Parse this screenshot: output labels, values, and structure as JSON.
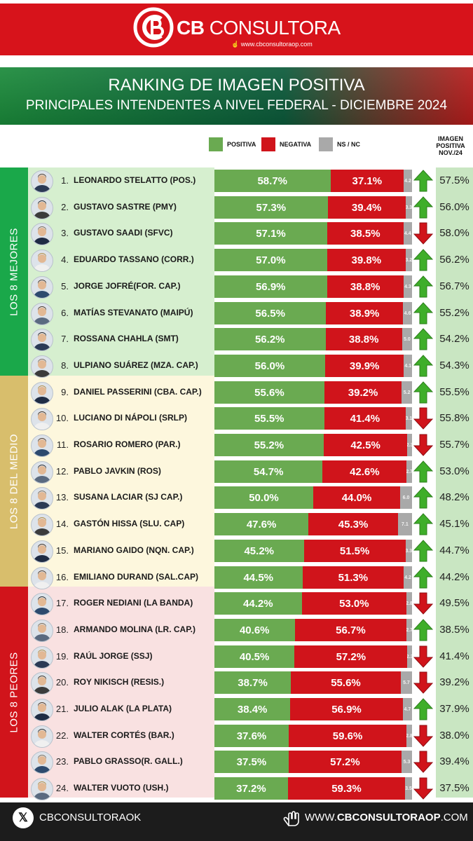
{
  "header": {
    "brand_bold": "CB",
    "brand_rest": "CONSULTORA",
    "url": "www.cbconsultoraop.com"
  },
  "title_line1": "RANKING DE IMAGEN POSITIVA",
  "title_line2": "PRINCIPALES INTENDENTES A NIVEL FEDERAL - DICIEMBRE 2024",
  "legend": {
    "positive": "POSITIVA",
    "negative": "NEGATIVA",
    "nsnc": "NS / NC",
    "prev_header": [
      "IMAGEN",
      "POSITIVA",
      "NOV./24"
    ]
  },
  "groups": [
    {
      "label": "LOS 8 MEJORES",
      "color": "#1aa84a",
      "bg": "#d6efcf"
    },
    {
      "label": "LOS 8 DEL MEDIO",
      "color": "#d8be6c",
      "bg": "#fdf7dd"
    },
    {
      "label": "LOS 8 PEORES",
      "color": "#d1141b",
      "bg": "#f9e1e1"
    }
  ],
  "colors": {
    "positive": "#6aaa51",
    "negative": "#d0141b",
    "nsnc": "#a9a9a9",
    "arrow_up": "#3fae2a",
    "arrow_down": "#d0141b"
  },
  "chart_data": {
    "type": "bar",
    "stacked": true,
    "orientation": "horizontal",
    "series_names": [
      "POSITIVA",
      "NEGATIVA",
      "NS / NC"
    ],
    "rows": [
      {
        "rank": "1.",
        "name": "LEONARDO STELATTO (POS.)",
        "pos": 58.7,
        "neg": 37.1,
        "ns": 4.2,
        "pos_label": "58.7%",
        "neg_label": "37.1%",
        "ns_label": "4.2",
        "trend": "up",
        "prev": "57.5%"
      },
      {
        "rank": "2.",
        "name": "GUSTAVO SASTRE (PMY)",
        "pos": 57.3,
        "neg": 39.4,
        "ns": 3.3,
        "pos_label": "57.3%",
        "neg_label": "39.4%",
        "ns_label": "3.3",
        "trend": "up",
        "prev": "56.0%"
      },
      {
        "rank": "3.",
        "name": "GUSTAVO SAADI (SFVC)",
        "pos": 57.1,
        "neg": 38.5,
        "ns": 4.4,
        "pos_label": "57.1%",
        "neg_label": "38.5%",
        "ns_label": "4.4",
        "trend": "down",
        "prev": "58.0%"
      },
      {
        "rank": "4.",
        "name": "EDUARDO TASSANO (CORR.)",
        "pos": 57.0,
        "neg": 39.8,
        "ns": 3.2,
        "pos_label": "57.0%",
        "neg_label": "39.8%",
        "ns_label": "3.2",
        "trend": "up",
        "prev": "56.2%"
      },
      {
        "rank": "5.",
        "name": "JORGE JOFRÉ(FOR. CAP.)",
        "pos": 56.9,
        "neg": 38.8,
        "ns": 4.3,
        "pos_label": "56.9%",
        "neg_label": "38.8%",
        "ns_label": "4.3",
        "trend": "up",
        "prev": "56.7%"
      },
      {
        "rank": "6.",
        "name": "MATÍAS STEVANATO (MAIPÚ)",
        "pos": 56.5,
        "neg": 38.9,
        "ns": 4.6,
        "pos_label": "56.5%",
        "neg_label": "38.9%",
        "ns_label": "4.6",
        "trend": "up",
        "prev": "55.2%"
      },
      {
        "rank": "7.",
        "name": "ROSSANA CHAHLA (SMT)",
        "pos": 56.2,
        "neg": 38.8,
        "ns": 5.0,
        "pos_label": "56.2%",
        "neg_label": "38.8%",
        "ns_label": "5.0",
        "trend": "up",
        "prev": "54.2%"
      },
      {
        "rank": "8.",
        "name": "ULPIANO SUÁREZ (MZA. CAP.)",
        "pos": 56.0,
        "neg": 39.9,
        "ns": 4.1,
        "pos_label": "56.0%",
        "neg_label": "39.9%",
        "ns_label": "4.1",
        "trend": "up",
        "prev": "54.3%"
      },
      {
        "rank": "9.",
        "name": "DANIEL PASSERINI (CBA. CAP.)",
        "pos": 55.6,
        "neg": 39.2,
        "ns": 5.2,
        "pos_label": "55.6%",
        "neg_label": "39.2%",
        "ns_label": "5.2",
        "trend": "up",
        "prev": "55.5%"
      },
      {
        "rank": "10.",
        "name": "LUCIANO DI NÁPOLI (SRLP)",
        "pos": 55.5,
        "neg": 41.4,
        "ns": 3.1,
        "pos_label": "55.5%",
        "neg_label": "41.4%",
        "ns_label": "3.1",
        "trend": "down",
        "prev": "55.8%"
      },
      {
        "rank": "11.",
        "name": "ROSARIO ROMERO (PAR.)",
        "pos": 55.2,
        "neg": 42.5,
        "ns": 2.3,
        "pos_label": "55.2%",
        "neg_label": "42.5%",
        "ns_label": "2.3",
        "trend": "down",
        "prev": "55.7%"
      },
      {
        "rank": "12.",
        "name": "PABLO JAVKIN (ROS)",
        "pos": 54.7,
        "neg": 42.6,
        "ns": 2.7,
        "pos_label": "54.7%",
        "neg_label": "42.6%",
        "ns_label": "2.7",
        "trend": "up",
        "prev": "53.0%"
      },
      {
        "rank": "13.",
        "name": "SUSANA LACIAR (SJ CAP.)",
        "pos": 50.0,
        "neg": 44.0,
        "ns": 6.0,
        "pos_label": "50.0%",
        "neg_label": "44.0%",
        "ns_label": "6.0",
        "trend": "up",
        "prev": "48.2%"
      },
      {
        "rank": "14.",
        "name": "GASTÓN HISSA (SLU. CAP)",
        "pos": 47.6,
        "neg": 45.3,
        "ns": 7.1,
        "pos_label": "47.6%",
        "neg_label": "45.3%",
        "ns_label": "7.1",
        "trend": "up",
        "prev": "45.1%"
      },
      {
        "rank": "15.",
        "name": "MARIANO GAIDO (NQN. CAP.)",
        "pos": 45.2,
        "neg": 51.5,
        "ns": 3.3,
        "pos_label": "45.2%",
        "neg_label": "51.5%",
        "ns_label": "3.3",
        "trend": "up",
        "prev": "44.7%"
      },
      {
        "rank": "16.",
        "name": "EMILIANO DURAND (SAL.CAP)",
        "pos": 44.5,
        "neg": 51.3,
        "ns": 4.2,
        "pos_label": "44.5%",
        "neg_label": "51.3%",
        "ns_label": "4.2",
        "trend": "up",
        "prev": "44.2%"
      },
      {
        "rank": "17.",
        "name": "ROGER NEDIANI (LA BANDA)",
        "pos": 44.2,
        "neg": 53.0,
        "ns": 2.8,
        "pos_label": "44.2%",
        "neg_label": "53.0%",
        "ns_label": "2.8",
        "trend": "down",
        "prev": "49.5%"
      },
      {
        "rank": "18.",
        "name": "ARMANDO MOLINA (LR. CAP.)",
        "pos": 40.6,
        "neg": 56.7,
        "ns": 2.7,
        "pos_label": "40.6%",
        "neg_label": "56.7%",
        "ns_label": "2.7",
        "trend": "up",
        "prev": "38.5%"
      },
      {
        "rank": "19.",
        "name": "RAÚL JORGE (SSJ)",
        "pos": 40.5,
        "neg": 57.2,
        "ns": 2.3,
        "pos_label": "40.5%",
        "neg_label": "57.2%",
        "ns_label": "2.3",
        "trend": "down",
        "prev": "41.4%"
      },
      {
        "rank": "20.",
        "name": "ROY NIKISCH (RESIS.)",
        "pos": 38.7,
        "neg": 55.6,
        "ns": 5.7,
        "pos_label": "38.7%",
        "neg_label": "55.6%",
        "ns_label": "5.7",
        "trend": "down",
        "prev": "39.2%"
      },
      {
        "rank": "21.",
        "name": "JULIO ALAK (LA PLATA)",
        "pos": 38.4,
        "neg": 56.9,
        "ns": 4.7,
        "pos_label": "38.4%",
        "neg_label": "56.9%",
        "ns_label": "4.7",
        "trend": "up",
        "prev": "37.9%"
      },
      {
        "rank": "22.",
        "name": "WALTER CORTÉS (BAR.)",
        "pos": 37.6,
        "neg": 59.6,
        "ns": 2.8,
        "pos_label": "37.6%",
        "neg_label": "59.6%",
        "ns_label": "2.8",
        "trend": "down",
        "prev": "38.0%"
      },
      {
        "rank": "23.",
        "name": "PABLO GRASSO(R. GALL.)",
        "pos": 37.5,
        "neg": 57.2,
        "ns": 5.3,
        "pos_label": "37.5%",
        "neg_label": "57.2%",
        "ns_label": "5.3",
        "trend": "down",
        "prev": "39.4%"
      },
      {
        "rank": "24.",
        "name": "WALTER VUOTO (USH.)",
        "pos": 37.2,
        "neg": 59.3,
        "ns": 3.5,
        "pos_label": "37.2%",
        "neg_label": "59.3%",
        "ns_label": "3.5",
        "trend": "down",
        "prev": "37.5%"
      }
    ]
  },
  "footer": {
    "left": "CBCONSULTORAOK",
    "right_prefix": "WWW.",
    "right_bold": "CBCONSULTORAOP",
    "right_suffix": ".COM"
  }
}
